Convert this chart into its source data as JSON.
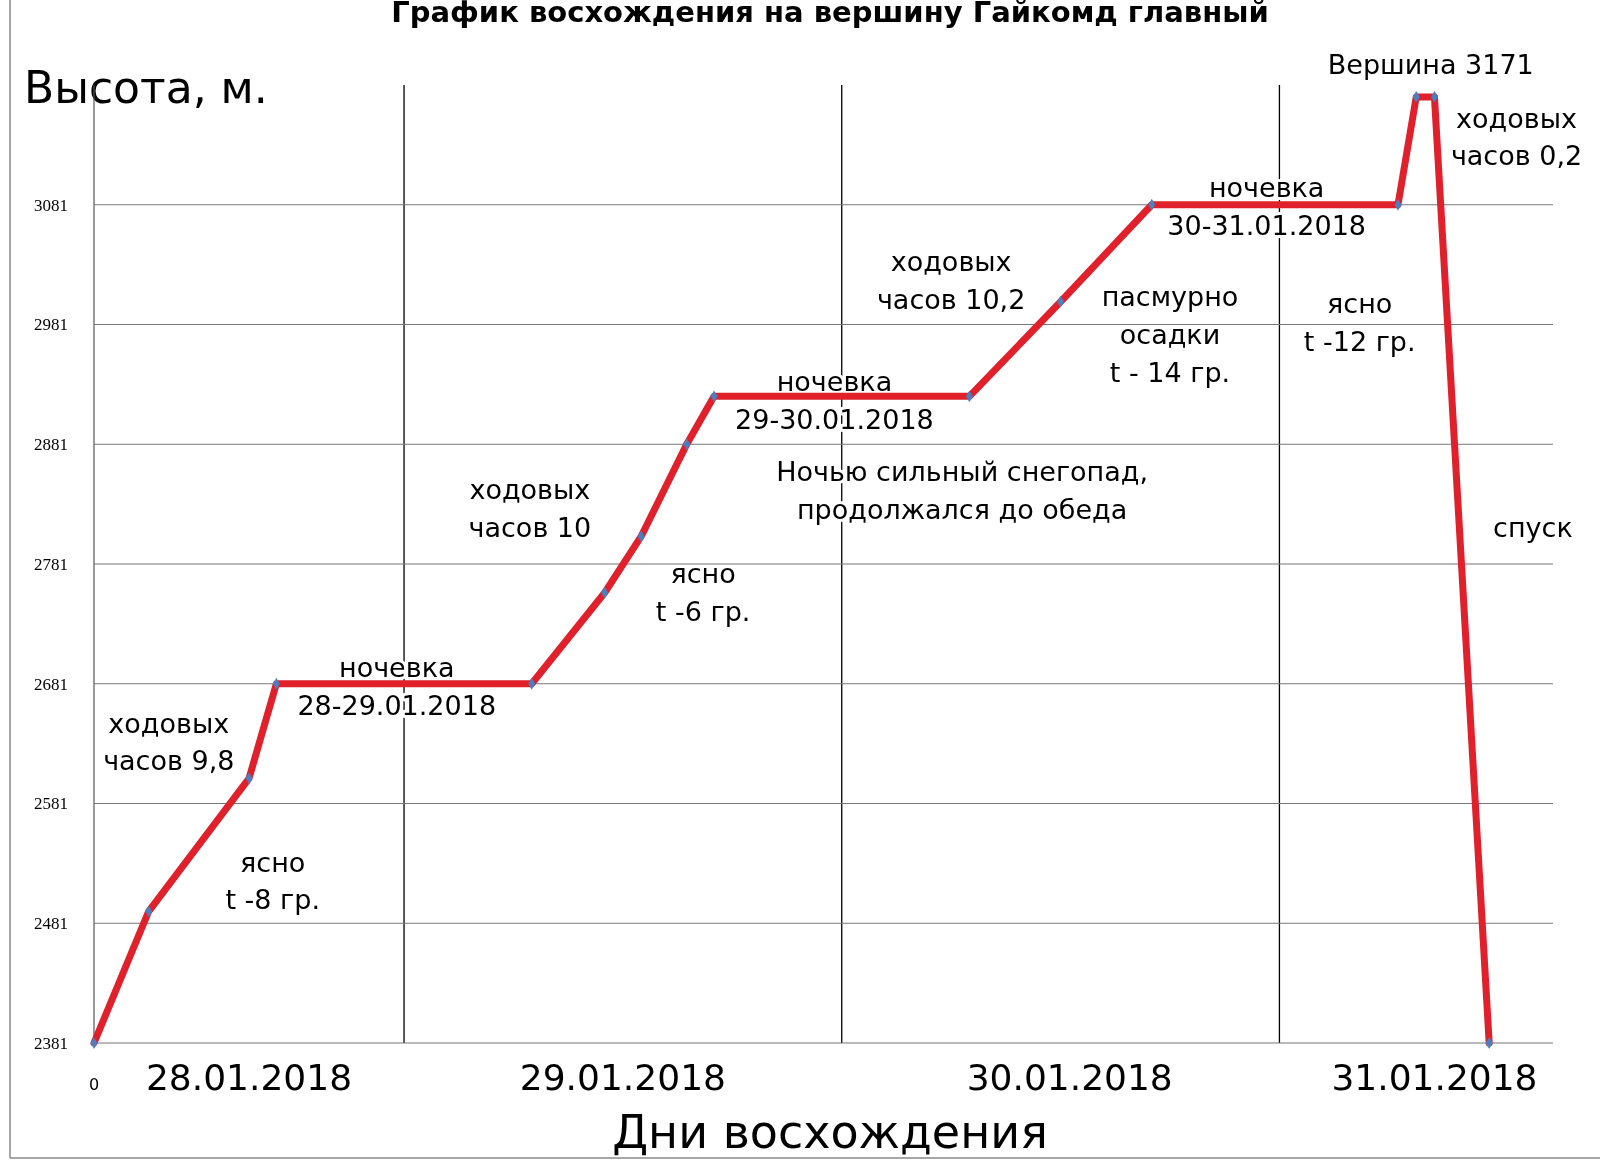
{
  "chart_data": {
    "type": "line",
    "title": "График восхождения на вершину Гайкомд главный",
    "xlabel": "Дни восхождения",
    "ylabel": "Высота, м.",
    "categories": [
      "0",
      null,
      null,
      null,
      null,
      null,
      null,
      null,
      null,
      null,
      null,
      null,
      null,
      null,
      null,
      null,
      null,
      "28.01.2018",
      null,
      null,
      null,
      null,
      null,
      null,
      null,
      null,
      null,
      null,
      null,
      null,
      null,
      null,
      null,
      null,
      null,
      null,
      null,
      null,
      null,
      null,
      null,
      null,
      null,
      null,
      null,
      null,
      null,
      null,
      null,
      null,
      null,
      null,
      null,
      null,
      null,
      null,
      null,
      null,
      "29.01.2018",
      null,
      null,
      null,
      null,
      null,
      null,
      null,
      null,
      null,
      null,
      null,
      null,
      null,
      null,
      null,
      null,
      null,
      null,
      null,
      null,
      null,
      null,
      null,
      null,
      null,
      null,
      null,
      null,
      null,
      null,
      null,
      null,
      null,
      null,
      null,
      null,
      null,
      null,
      null,
      null,
      null,
      null,
      null,
      null,
      null,
      null,
      null,
      null,
      "30.01.2018",
      null,
      null,
      null,
      null,
      null,
      null,
      null,
      null,
      null,
      null,
      null,
      null,
      null,
      null,
      null,
      null,
      null,
      null,
      null,
      null,
      null,
      null,
      null,
      null,
      null,
      null,
      null,
      null,
      null,
      null,
      null,
      null,
      null,
      null,
      null,
      null,
      null,
      null,
      null,
      "31.01.2018",
      null,
      null,
      null,
      null,
      null,
      null,
      null,
      null,
      null,
      null,
      null,
      null,
      null
    ],
    "series": [
      {
        "color": "#e0202a",
        "values": [
          2381,
          null,
          null,
          null,
          null,
          null,
          2491,
          null,
          null,
          null,
          null,
          null,
          null,
          null,
          null,
          null,
          null,
          2602,
          null,
          null,
          2681,
          null,
          null,
          null,
          null,
          null,
          null,
          null,
          null,
          null,
          null,
          null,
          null,
          null,
          null,
          null,
          null,
          null,
          null,
          null,
          null,
          null,
          null,
          null,
          null,
          null,
          null,
          null,
          2681,
          null,
          null,
          null,
          null,
          null,
          null,
          null,
          2757,
          null,
          null,
          null,
          2804,
          null,
          null,
          null,
          null,
          2881,
          null,
          null,
          2921,
          null,
          null,
          null,
          null,
          null,
          null,
          null,
          null,
          null,
          null,
          null,
          null,
          null,
          null,
          null,
          null,
          null,
          null,
          null,
          null,
          null,
          null,
          null,
          null,
          null,
          null,
          null,
          2921,
          null,
          null,
          null,
          null,
          null,
          null,
          null,
          null,
          null,
          3000,
          null,
          null,
          null,
          null,
          null,
          null,
          null,
          null,
          null,
          3081,
          null,
          null,
          null,
          null,
          null,
          null,
          null,
          null,
          null,
          null,
          null,
          null,
          null,
          null,
          null,
          null,
          null,
          null,
          null,
          null,
          null,
          null,
          null,
          null,
          null,
          null,
          3081,
          null,
          3171,
          null,
          3171,
          null,
          null,
          null,
          null,
          null,
          2381,
          null,
          null,
          null,
          null,
          null,
          null,
          null
        ]
      }
    ],
    "ylim": [
      2381,
      3181
    ],
    "yticks": [
      2381,
      2481,
      2581,
      2681,
      2781,
      2881,
      2981,
      3081
    ],
    "grid": "y",
    "marker": "diamond",
    "line_style": "solid",
    "annotations": [
      "Вершина 3171",
      "ходовых\nчасов 0,2",
      "ночевка\n30-31.01.2018",
      "ходовых\nчасов 10,2",
      "пасмурно\nосадки\nt - 14 гр.",
      "ясно\nt -12 гр.",
      "ночевка\n29-30.01.2018",
      "Ночью сильный снегопад,\nпродолжался до обеда",
      "ходовых\nчасов 10",
      "ясно\nt -6 гр.",
      "спуск",
      "ночевка\n28-29.01.2018",
      "ходовых\nчасов 9,8",
      "ясно\nt -8 гр."
    ]
  }
}
